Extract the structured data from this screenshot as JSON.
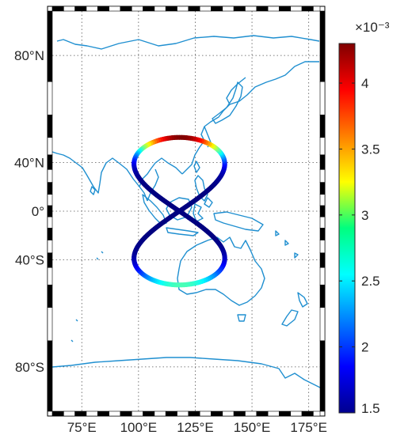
{
  "map": {
    "projection": "Mercator",
    "lon_range": [
      62,
      180
    ],
    "lat_range": [
      -85,
      85
    ],
    "coastline_color": "#1f8fd0",
    "grid": "dotted",
    "frame": "black-white-checkered",
    "lon_ticks": [
      {
        "value": 75,
        "label": "75°E"
      },
      {
        "value": 100,
        "label": "100°E"
      },
      {
        "value": 125,
        "label": "125°E"
      },
      {
        "value": 150,
        "label": "150°E"
      },
      {
        "value": 175,
        "label": "175°E"
      }
    ],
    "lat_ticks": [
      {
        "value": 80,
        "label": "80°N"
      },
      {
        "value": 40,
        "label": "40°N"
      },
      {
        "value": 0,
        "label": "0°"
      },
      {
        "value": -40,
        "label": "40°S"
      },
      {
        "value": -80,
        "label": "80°S"
      }
    ]
  },
  "track": {
    "shape": "figure-eight ground track",
    "center_lon": 118,
    "lat_extent": [
      -55,
      55
    ],
    "lon_extent": [
      98,
      138
    ],
    "lon_amplitude": 20,
    "value_min": 1.5,
    "value_max": 4.3,
    "value_unit_exponent": "-3"
  },
  "colorbar": {
    "colormap": "jet",
    "exponent_label": "×10⁻³",
    "range": [
      1.5,
      4.3
    ],
    "ticks": [
      {
        "value": 1.5,
        "label": "1.5"
      },
      {
        "value": 2,
        "label": "2"
      },
      {
        "value": 2.5,
        "label": "2.5"
      },
      {
        "value": 3,
        "label": "3"
      },
      {
        "value": 3.5,
        "label": "3.5"
      },
      {
        "value": 4,
        "label": "4"
      }
    ]
  }
}
